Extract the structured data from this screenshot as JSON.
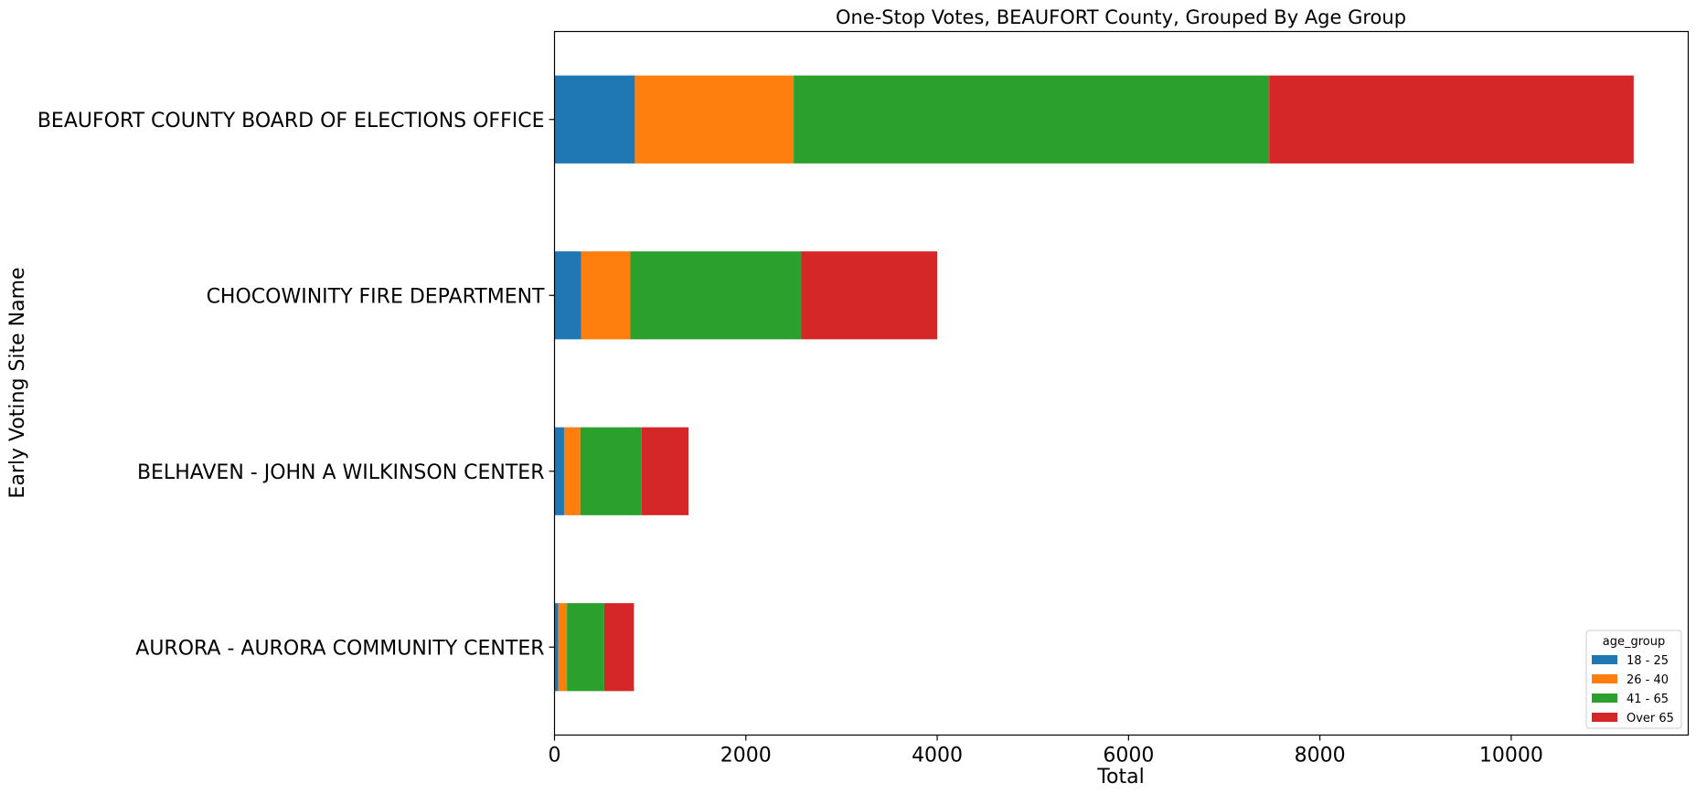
{
  "chart_data": {
    "type": "bar",
    "orientation": "horizontal",
    "stacked": true,
    "title": "One-Stop Votes, BEAUFORT County, Grouped By Age Group",
    "xlabel": "Total",
    "ylabel": "Early Voting Site Name",
    "xlim": [
      0,
      11850
    ],
    "xticks": [
      0,
      2000,
      4000,
      6000,
      8000,
      10000
    ],
    "xtick_labels": [
      "0",
      "2000",
      "4000",
      "6000",
      "8000",
      "10000"
    ],
    "grid": false,
    "categories": [
      "BEAUFORT COUNTY BOARD OF ELECTIONS OFFICE",
      "CHOCOWINITY FIRE DEPARTMENT",
      "BELHAVEN - JOHN A WILKINSON CENTER",
      "AURORA - AURORA COMMUNITY CENTER"
    ],
    "series": [
      {
        "name": "18 - 25",
        "color": "#1f77b4",
        "values": [
          840,
          280,
          100,
          40
        ]
      },
      {
        "name": "26 - 40",
        "color": "#ff7f0e",
        "values": [
          1660,
          510,
          170,
          90
        ]
      },
      {
        "name": "41 - 65",
        "color": "#2ca02c",
        "values": [
          4970,
          1790,
          640,
          390
        ]
      },
      {
        "name": "Over 65",
        "color": "#d62728",
        "values": [
          3810,
          1420,
          490,
          310
        ]
      }
    ],
    "legend": {
      "title": "age_group",
      "placement": "lower-right"
    }
  }
}
